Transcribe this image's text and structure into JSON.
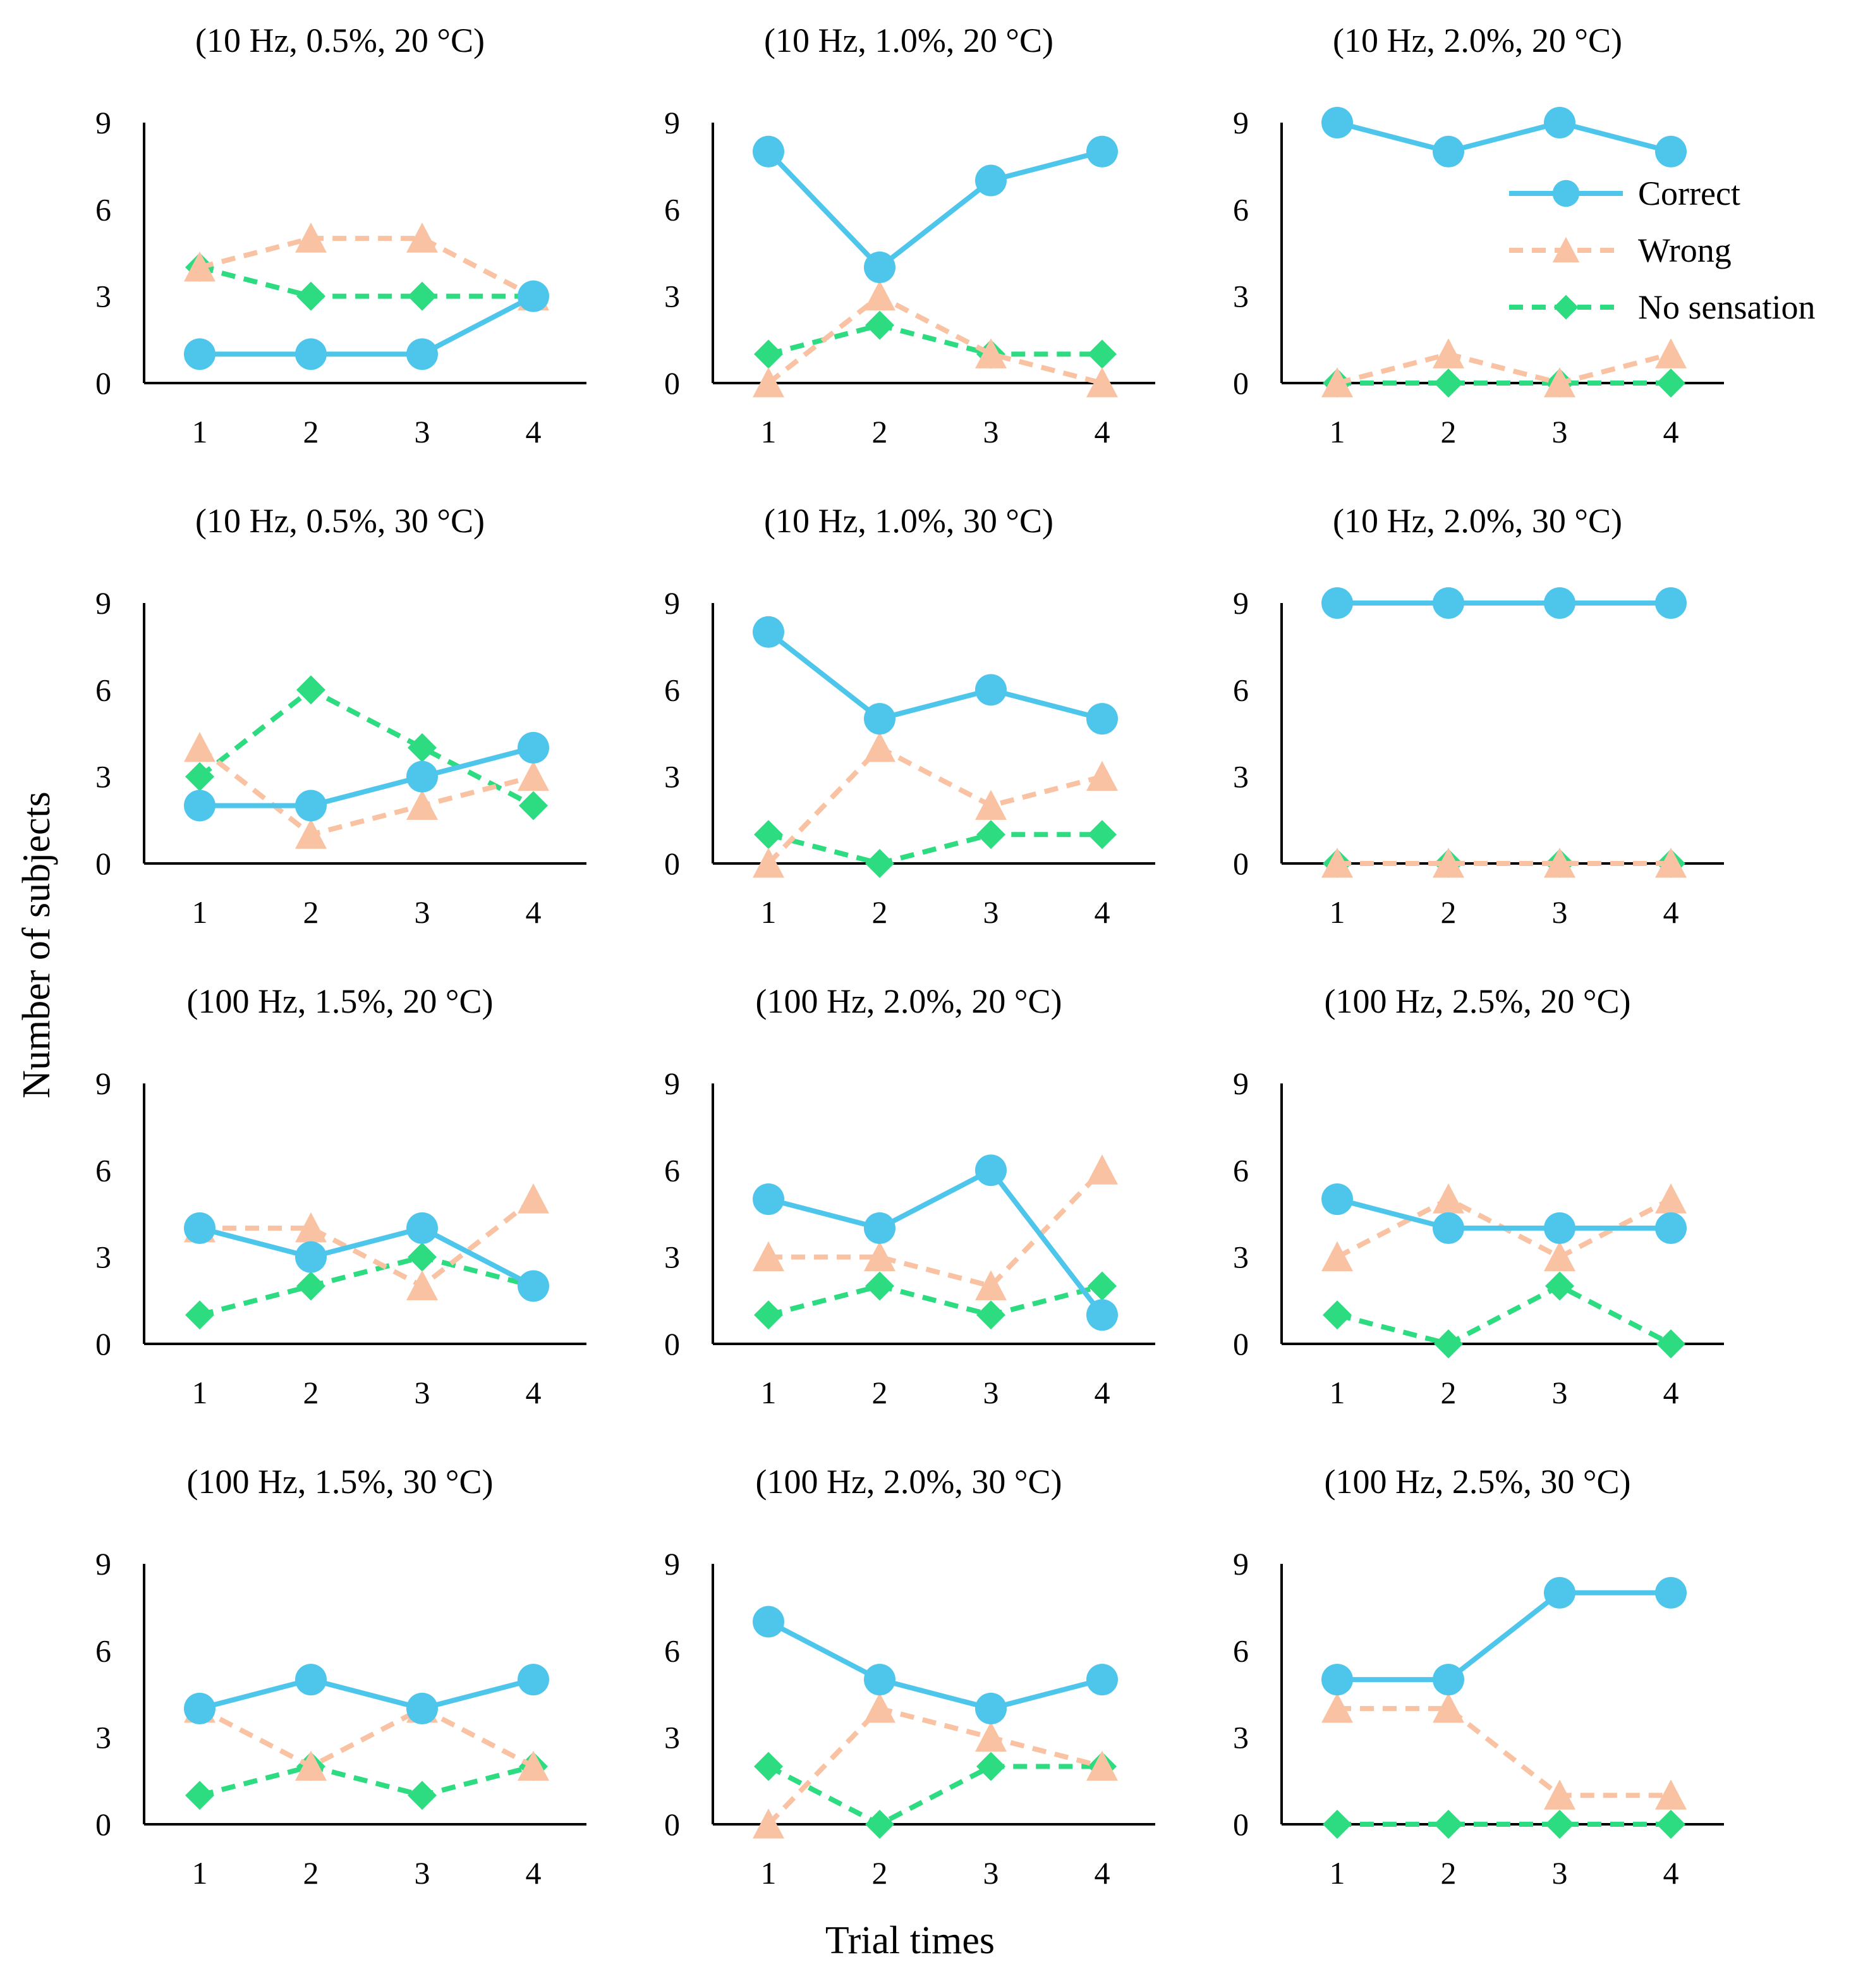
{
  "figure": {
    "ylabel": "Number of subjects",
    "xlabel": "Trial times"
  },
  "legend": {
    "placement": "top-right of the third panel in row 1",
    "entries": [
      {
        "name": "Correct",
        "color": "#4EC6EB",
        "marker": "circle",
        "line": "solid"
      },
      {
        "name": "Wrong",
        "color": "#F9C2A2",
        "marker": "triangle",
        "line": "dashed"
      },
      {
        "name": "No sensation",
        "color": "#2DDB80",
        "marker": "diamond",
        "line": "dashed"
      }
    ]
  },
  "chart_data": [
    {
      "type": "line",
      "title": "(10 Hz, 0.5%, 20  °C)",
      "x": [
        1,
        2,
        3,
        4
      ],
      "ylim": [
        0,
        9
      ],
      "yticks": [
        0,
        3,
        6,
        9
      ],
      "series": [
        {
          "name": "Correct",
          "values": [
            1,
            1,
            1,
            3
          ]
        },
        {
          "name": "Wrong",
          "values": [
            4,
            5,
            5,
            3
          ]
        },
        {
          "name": "No sensation",
          "values": [
            4,
            3,
            3,
            3
          ]
        }
      ]
    },
    {
      "type": "line",
      "title": "(10 Hz, 1.0%, 20  °C)",
      "x": [
        1,
        2,
        3,
        4
      ],
      "ylim": [
        0,
        9
      ],
      "yticks": [
        0,
        3,
        6,
        9
      ],
      "series": [
        {
          "name": "Correct",
          "values": [
            8,
            4,
            7,
            8
          ]
        },
        {
          "name": "Wrong",
          "values": [
            0,
            3,
            1,
            0
          ]
        },
        {
          "name": "No sensation",
          "values": [
            1,
            2,
            1,
            1
          ]
        }
      ]
    },
    {
      "type": "line",
      "title": "(10 Hz, 2.0%, 20  °C)",
      "x": [
        1,
        2,
        3,
        4
      ],
      "ylim": [
        0,
        9
      ],
      "yticks": [
        0,
        3,
        6,
        9
      ],
      "series": [
        {
          "name": "Correct",
          "values": [
            9,
            8,
            9,
            8
          ]
        },
        {
          "name": "Wrong",
          "values": [
            0,
            1,
            0,
            1
          ]
        },
        {
          "name": "No sensation",
          "values": [
            0,
            0,
            0,
            0
          ]
        }
      ]
    },
    {
      "type": "line",
      "title": "(10 Hz, 0.5%, 30  °C)",
      "x": [
        1,
        2,
        3,
        4
      ],
      "ylim": [
        0,
        9
      ],
      "yticks": [
        0,
        3,
        6,
        9
      ],
      "series": [
        {
          "name": "Correct",
          "values": [
            2,
            2,
            3,
            4
          ]
        },
        {
          "name": "Wrong",
          "values": [
            4,
            1,
            2,
            3
          ]
        },
        {
          "name": "No sensation",
          "values": [
            3,
            6,
            4,
            2
          ]
        }
      ]
    },
    {
      "type": "line",
      "title": "(10 Hz, 1.0%, 30  °C)",
      "x": [
        1,
        2,
        3,
        4
      ],
      "ylim": [
        0,
        9
      ],
      "yticks": [
        0,
        3,
        6,
        9
      ],
      "series": [
        {
          "name": "Correct",
          "values": [
            8,
            5,
            6,
            5
          ]
        },
        {
          "name": "Wrong",
          "values": [
            0,
            4,
            2,
            3
          ]
        },
        {
          "name": "No sensation",
          "values": [
            1,
            0,
            1,
            1
          ]
        }
      ]
    },
    {
      "type": "line",
      "title": "(10 Hz, 2.0%, 30  °C)",
      "x": [
        1,
        2,
        3,
        4
      ],
      "ylim": [
        0,
        9
      ],
      "yticks": [
        0,
        3,
        6,
        9
      ],
      "series": [
        {
          "name": "Correct",
          "values": [
            9,
            9,
            9,
            9
          ]
        },
        {
          "name": "Wrong",
          "values": [
            0,
            0,
            0,
            0
          ]
        },
        {
          "name": "No sensation",
          "values": [
            0,
            0,
            0,
            0
          ]
        }
      ]
    },
    {
      "type": "line",
      "title": "(100 Hz, 1.5%, 20  °C)",
      "x": [
        1,
        2,
        3,
        4
      ],
      "ylim": [
        0,
        9
      ],
      "yticks": [
        0,
        3,
        6,
        9
      ],
      "series": [
        {
          "name": "Correct",
          "values": [
            4,
            3,
            4,
            2
          ]
        },
        {
          "name": "Wrong",
          "values": [
            4,
            4,
            2,
            5
          ]
        },
        {
          "name": "No sensation",
          "values": [
            1,
            2,
            3,
            2
          ]
        }
      ]
    },
    {
      "type": "line",
      "title": "(100 Hz, 2.0%, 20  °C)",
      "x": [
        1,
        2,
        3,
        4
      ],
      "ylim": [
        0,
        9
      ],
      "yticks": [
        0,
        3,
        6,
        9
      ],
      "series": [
        {
          "name": "Correct",
          "values": [
            5,
            4,
            6,
            1
          ]
        },
        {
          "name": "Wrong",
          "values": [
            3,
            3,
            2,
            6
          ]
        },
        {
          "name": "No sensation",
          "values": [
            1,
            2,
            1,
            2
          ]
        }
      ]
    },
    {
      "type": "line",
      "title": "(100 Hz, 2.5%, 20  °C)",
      "x": [
        1,
        2,
        3,
        4
      ],
      "ylim": [
        0,
        9
      ],
      "yticks": [
        0,
        3,
        6,
        9
      ],
      "series": [
        {
          "name": "Correct",
          "values": [
            5,
            4,
            4,
            4
          ]
        },
        {
          "name": "Wrong",
          "values": [
            3,
            5,
            3,
            5
          ]
        },
        {
          "name": "No sensation",
          "values": [
            1,
            0,
            2,
            0
          ]
        }
      ]
    },
    {
      "type": "line",
      "title": "(100 Hz, 1.5%, 30  °C)",
      "x": [
        1,
        2,
        3,
        4
      ],
      "ylim": [
        0,
        9
      ],
      "yticks": [
        0,
        3,
        6,
        9
      ],
      "series": [
        {
          "name": "Correct",
          "values": [
            4,
            5,
            4,
            5
          ]
        },
        {
          "name": "Wrong",
          "values": [
            4,
            2,
            4,
            2
          ]
        },
        {
          "name": "No sensation",
          "values": [
            1,
            2,
            1,
            2
          ]
        }
      ]
    },
    {
      "type": "line",
      "title": "(100 Hz, 2.0%, 30  °C)",
      "x": [
        1,
        2,
        3,
        4
      ],
      "ylim": [
        0,
        9
      ],
      "yticks": [
        0,
        3,
        6,
        9
      ],
      "series": [
        {
          "name": "Correct",
          "values": [
            7,
            5,
            4,
            5
          ]
        },
        {
          "name": "Wrong",
          "values": [
            0,
            4,
            3,
            2
          ]
        },
        {
          "name": "No sensation",
          "values": [
            2,
            0,
            2,
            2
          ]
        }
      ]
    },
    {
      "type": "line",
      "title": "(100 Hz, 2.5%, 30  °C)",
      "x": [
        1,
        2,
        3,
        4
      ],
      "ylim": [
        0,
        9
      ],
      "yticks": [
        0,
        3,
        6,
        9
      ],
      "series": [
        {
          "name": "Correct",
          "values": [
            5,
            5,
            8,
            8
          ]
        },
        {
          "name": "Wrong",
          "values": [
            4,
            4,
            1,
            1
          ]
        },
        {
          "name": "No sensation",
          "values": [
            0,
            0,
            0,
            0
          ]
        }
      ]
    }
  ]
}
